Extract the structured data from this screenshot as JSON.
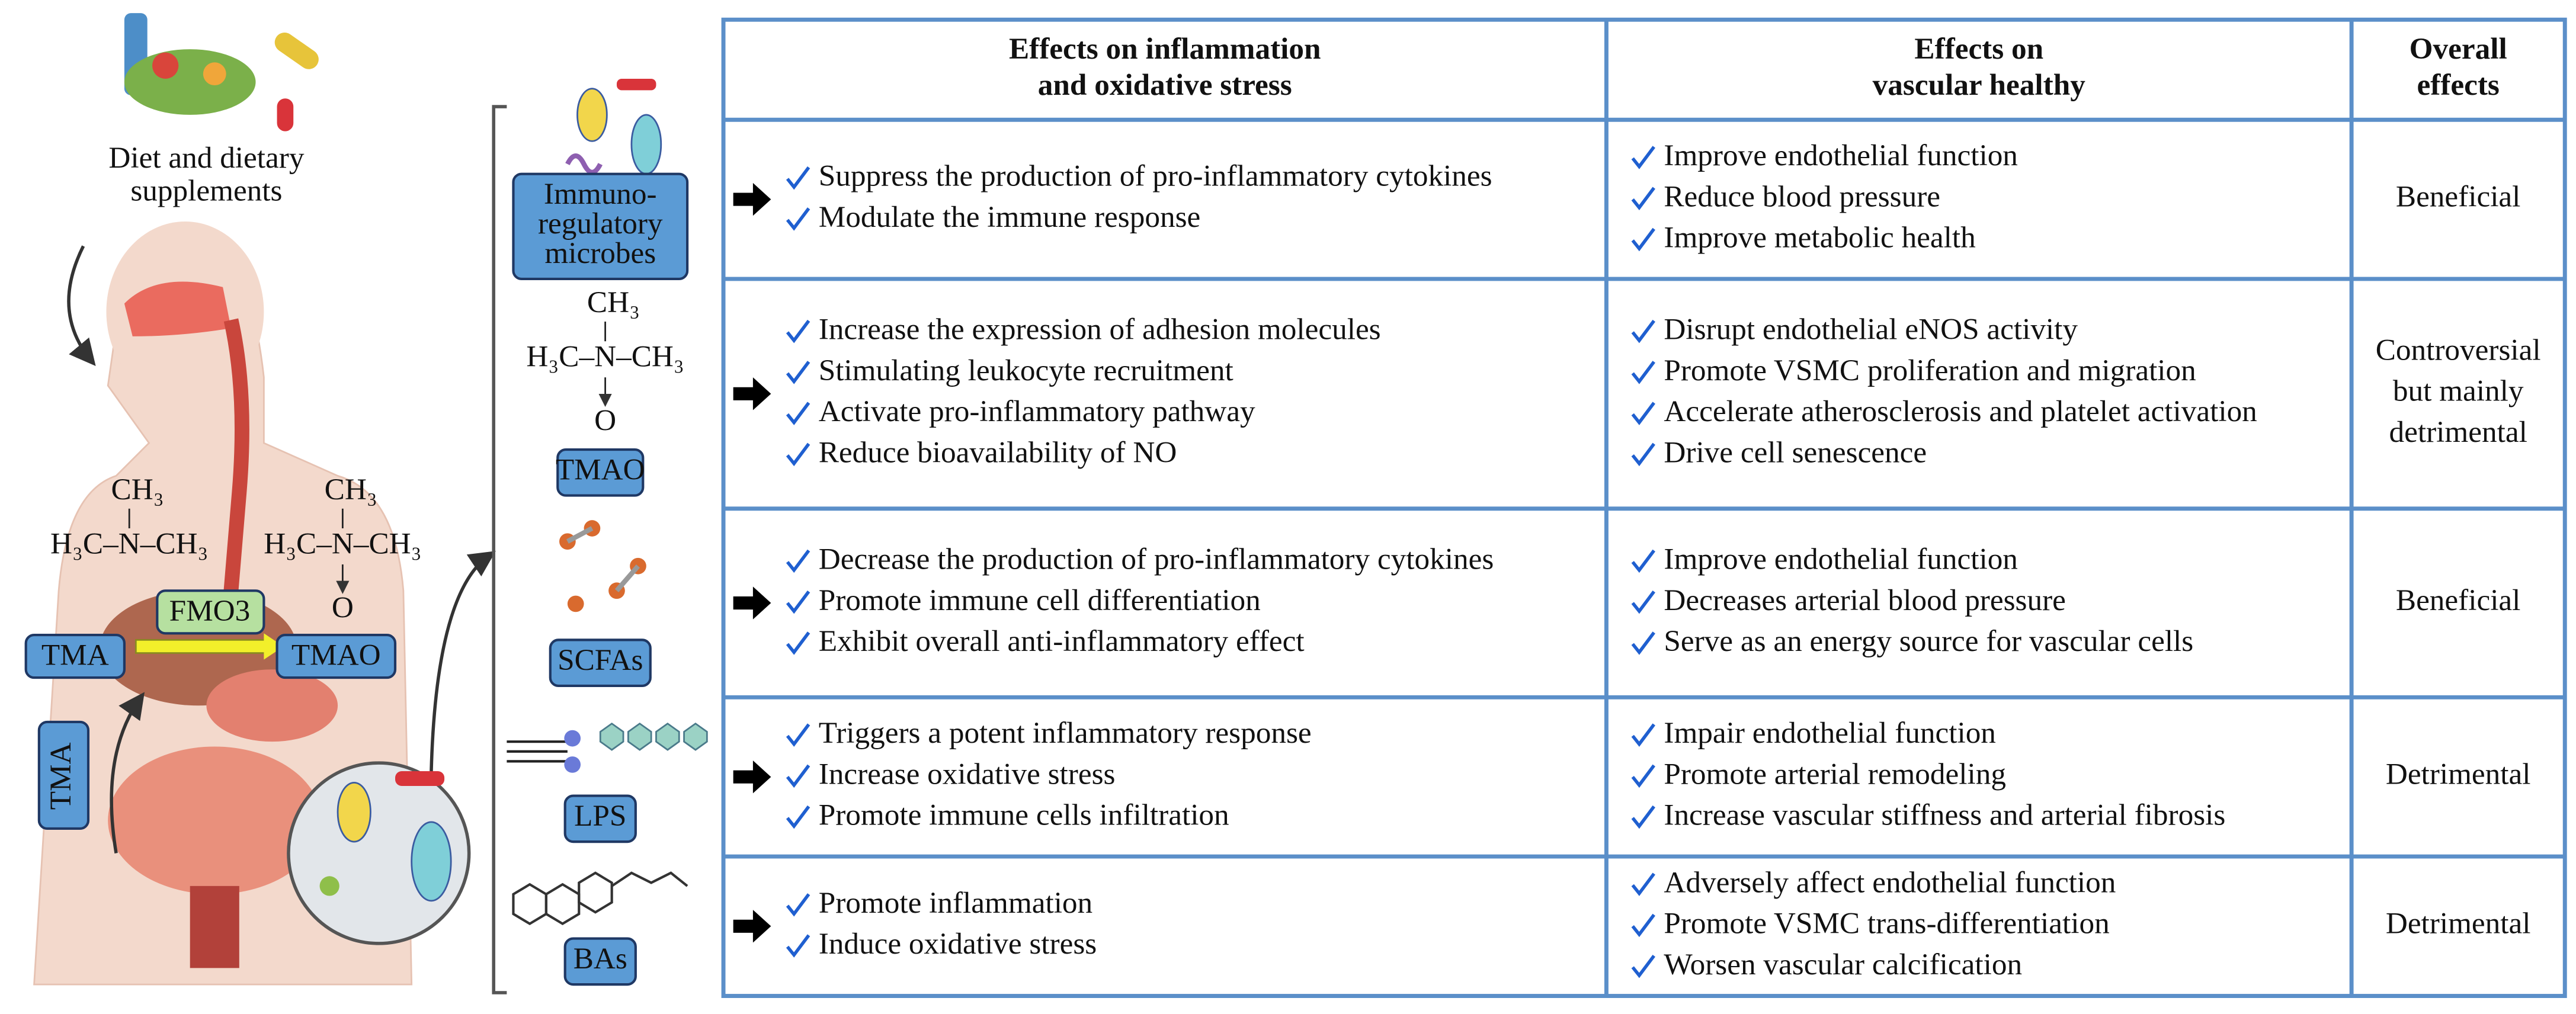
{
  "left": {
    "diet_lines": [
      "Diet and dietary",
      "supplements"
    ],
    "tma_structure": {
      "top": "CH₃",
      "mid": "H₃C–N–CH₃"
    },
    "tmao_structure": {
      "top": "CH₃",
      "mid": "H₃C–N–CH₃",
      "bottom": "O"
    },
    "tma_label": "TMA",
    "enzyme_label": "FMO3",
    "tmao_label": "TMAO",
    "tma_vertical_label": "TMA"
  },
  "table": {
    "header": [
      [
        "Effects on inflammation",
        "and oxidative stress"
      ],
      [
        "Effects on",
        "vascular healthy"
      ],
      [
        "Overall",
        "effects"
      ]
    ],
    "rows": [
      {
        "label_lines": [
          "Immuno-",
          "regulatory",
          "microbes"
        ],
        "inflammation": [
          "Suppress the production of pro-inflammatory cytokines",
          "Modulate the immune response"
        ],
        "vascular": [
          "Improve endothelial function",
          "Reduce blood pressure",
          "Improve metabolic health"
        ],
        "overall_lines": [
          "Beneficial"
        ]
      },
      {
        "label_lines": [
          "TMAO"
        ],
        "structure": {
          "top": "CH₃",
          "mid": "H₃C–N–CH₃",
          "bottom": "O"
        },
        "inflammation": [
          "Increase the expression of adhesion molecules",
          "Stimulating leukocyte recruitment",
          "Activate pro-inflammatory pathway",
          "Reduce bioavailability of NO"
        ],
        "vascular": [
          "Disrupt endothelial eNOS activity",
          "Promote VSMC proliferation and migration",
          "Accelerate atherosclerosis and platelet activation",
          "Drive cell senescence"
        ],
        "overall_lines": [
          "Controversial",
          "but mainly",
          "detrimental"
        ]
      },
      {
        "label_lines": [
          "SCFAs"
        ],
        "inflammation": [
          "Decrease the production of pro-inflammatory cytokines",
          "Promote immune cell differentiation",
          "Exhibit overall anti-inflammatory effect"
        ],
        "vascular": [
          "Improve endothelial function",
          "Decreases arterial blood pressure",
          "Serve as an energy source for vascular cells"
        ],
        "overall_lines": [
          "Beneficial"
        ]
      },
      {
        "label_lines": [
          "LPS"
        ],
        "inflammation": [
          "Triggers a potent inflammatory response",
          "Increase oxidative stress",
          "Promote immune cells infiltration"
        ],
        "vascular": [
          "Impair endothelial function",
          "Promote arterial remodeling",
          "Increase vascular stiffness and arterial fibrosis"
        ],
        "overall_lines": [
          "Detrimental"
        ]
      },
      {
        "label_lines": [
          "BAs"
        ],
        "inflammation": [
          "Promote inflammation",
          "Induce oxidative stress"
        ],
        "vascular": [
          "Adversely affect endothelial function",
          "Promote VSMC trans-differentiation",
          "Worsen vascular calcification"
        ],
        "overall_lines": [
          "Detrimental"
        ]
      }
    ]
  }
}
